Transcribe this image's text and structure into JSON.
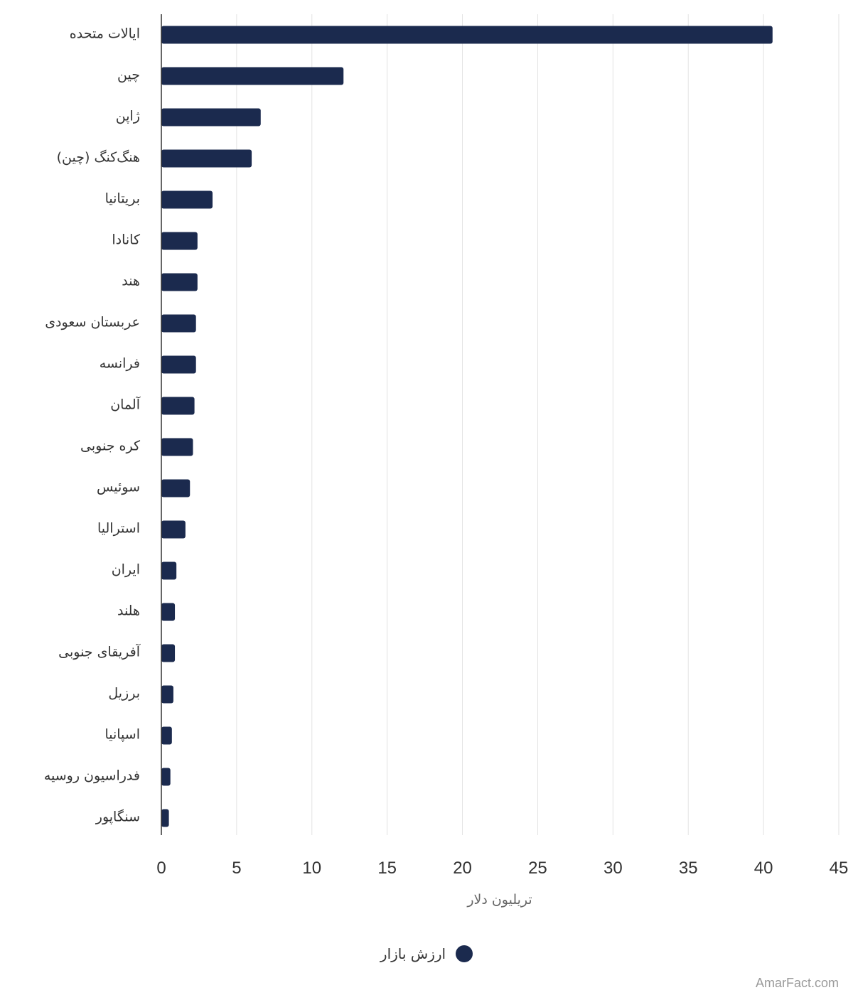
{
  "chart_data": {
    "type": "bar",
    "orientation": "horizontal",
    "categories": [
      "ایالات متحده",
      "چین",
      "ژاپن",
      "هنگ‌کنگ (چین)",
      "بریتانیا",
      "کانادا",
      "هند",
      "عربستان سعودی",
      "فرانسه",
      "آلمان",
      "کره جنوبی",
      "سوئیس",
      "استرالیا",
      "ایران",
      "هلند",
      "آفریقای جنوبی",
      "برزیل",
      "اسپانیا",
      "فدراسیون روسیه",
      "سنگاپور"
    ],
    "series": [
      {
        "name": "ارزش بازار",
        "color": "#1b2a4e",
        "values": [
          40.6,
          12.1,
          6.6,
          6.0,
          3.4,
          2.4,
          2.4,
          2.3,
          2.3,
          2.2,
          2.1,
          1.9,
          1.6,
          1.0,
          0.9,
          0.9,
          0.8,
          0.7,
          0.6,
          0.5
        ]
      }
    ],
    "xlabel": "تریلیون دلار",
    "xlim": [
      0,
      45
    ],
    "xticks": [
      0,
      5,
      10,
      15,
      20,
      25,
      30,
      35,
      40,
      45
    ],
    "grid": true,
    "legend_position": "bottom-center"
  },
  "watermark": "AmarFact.com"
}
